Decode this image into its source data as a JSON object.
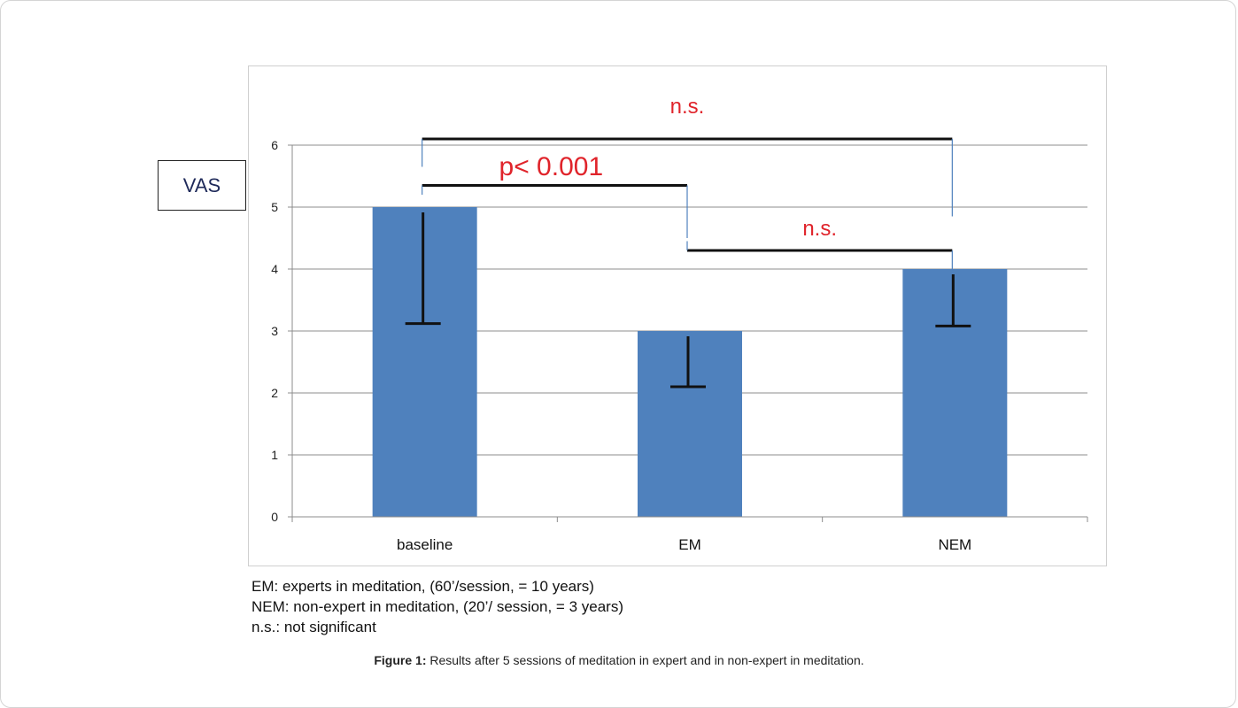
{
  "chart_data": {
    "type": "bar",
    "categories": [
      "baseline",
      "EM",
      "NEM"
    ],
    "values": [
      5,
      3,
      4
    ],
    "error_lower": [
      3.12,
      2.1,
      3.08
    ],
    "ylim": [
      0,
      6
    ],
    "yticks": [
      "0",
      "1",
      "2",
      "3",
      "4",
      "5",
      "6"
    ],
    "ylabel": "VAS",
    "bar_color": "#4f81bd",
    "grid": true,
    "significance": [
      {
        "from": "baseline",
        "to": "NEM",
        "label": "n.s.",
        "level": 6.1
      },
      {
        "from": "baseline",
        "to": "EM",
        "label": "p< 0.001",
        "level": 5.35
      },
      {
        "from": "EM",
        "to": "NEM",
        "label": "n.s.",
        "level": 4.3
      }
    ],
    "significance_color": "#e0242b"
  },
  "notes": [
    "EM: experts in meditation, (60’/session, = 10 years)",
    "NEM: non-expert in meditation, (20’/ session, = 3 years)",
    "n.s.: not significant"
  ],
  "caption": {
    "label": "Figure 1:",
    "text": " Results after 5 sessions of meditation in expert and in non-expert in meditation."
  }
}
